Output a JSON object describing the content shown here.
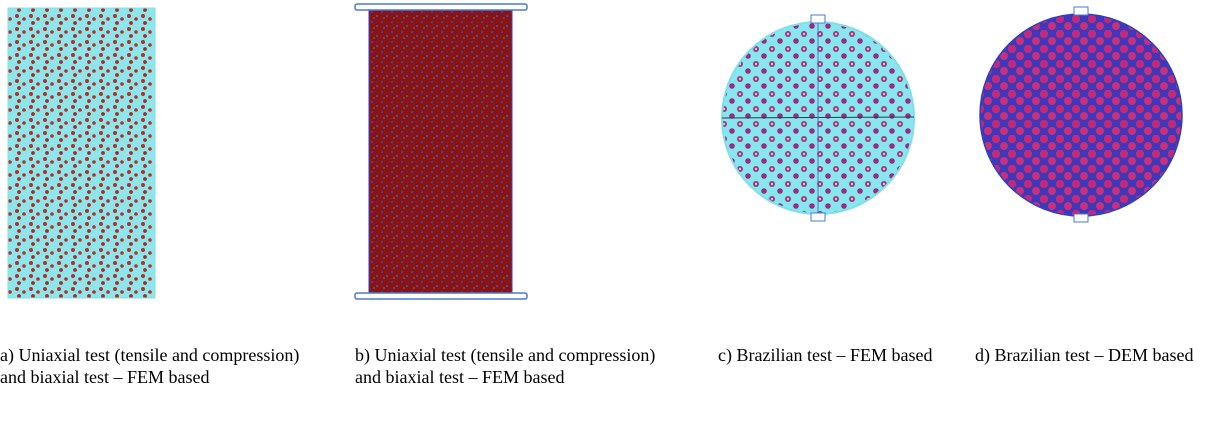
{
  "figure": {
    "captions": [
      "a) Uniaxial test (tensile and compression) and biaxial test – FEM based",
      "b) Uniaxial test (tensile and compression) and biaxial test – FEM based",
      "c) Brazilian test – FEM based",
      "d) Brazilian test – DEM based"
    ]
  }
}
